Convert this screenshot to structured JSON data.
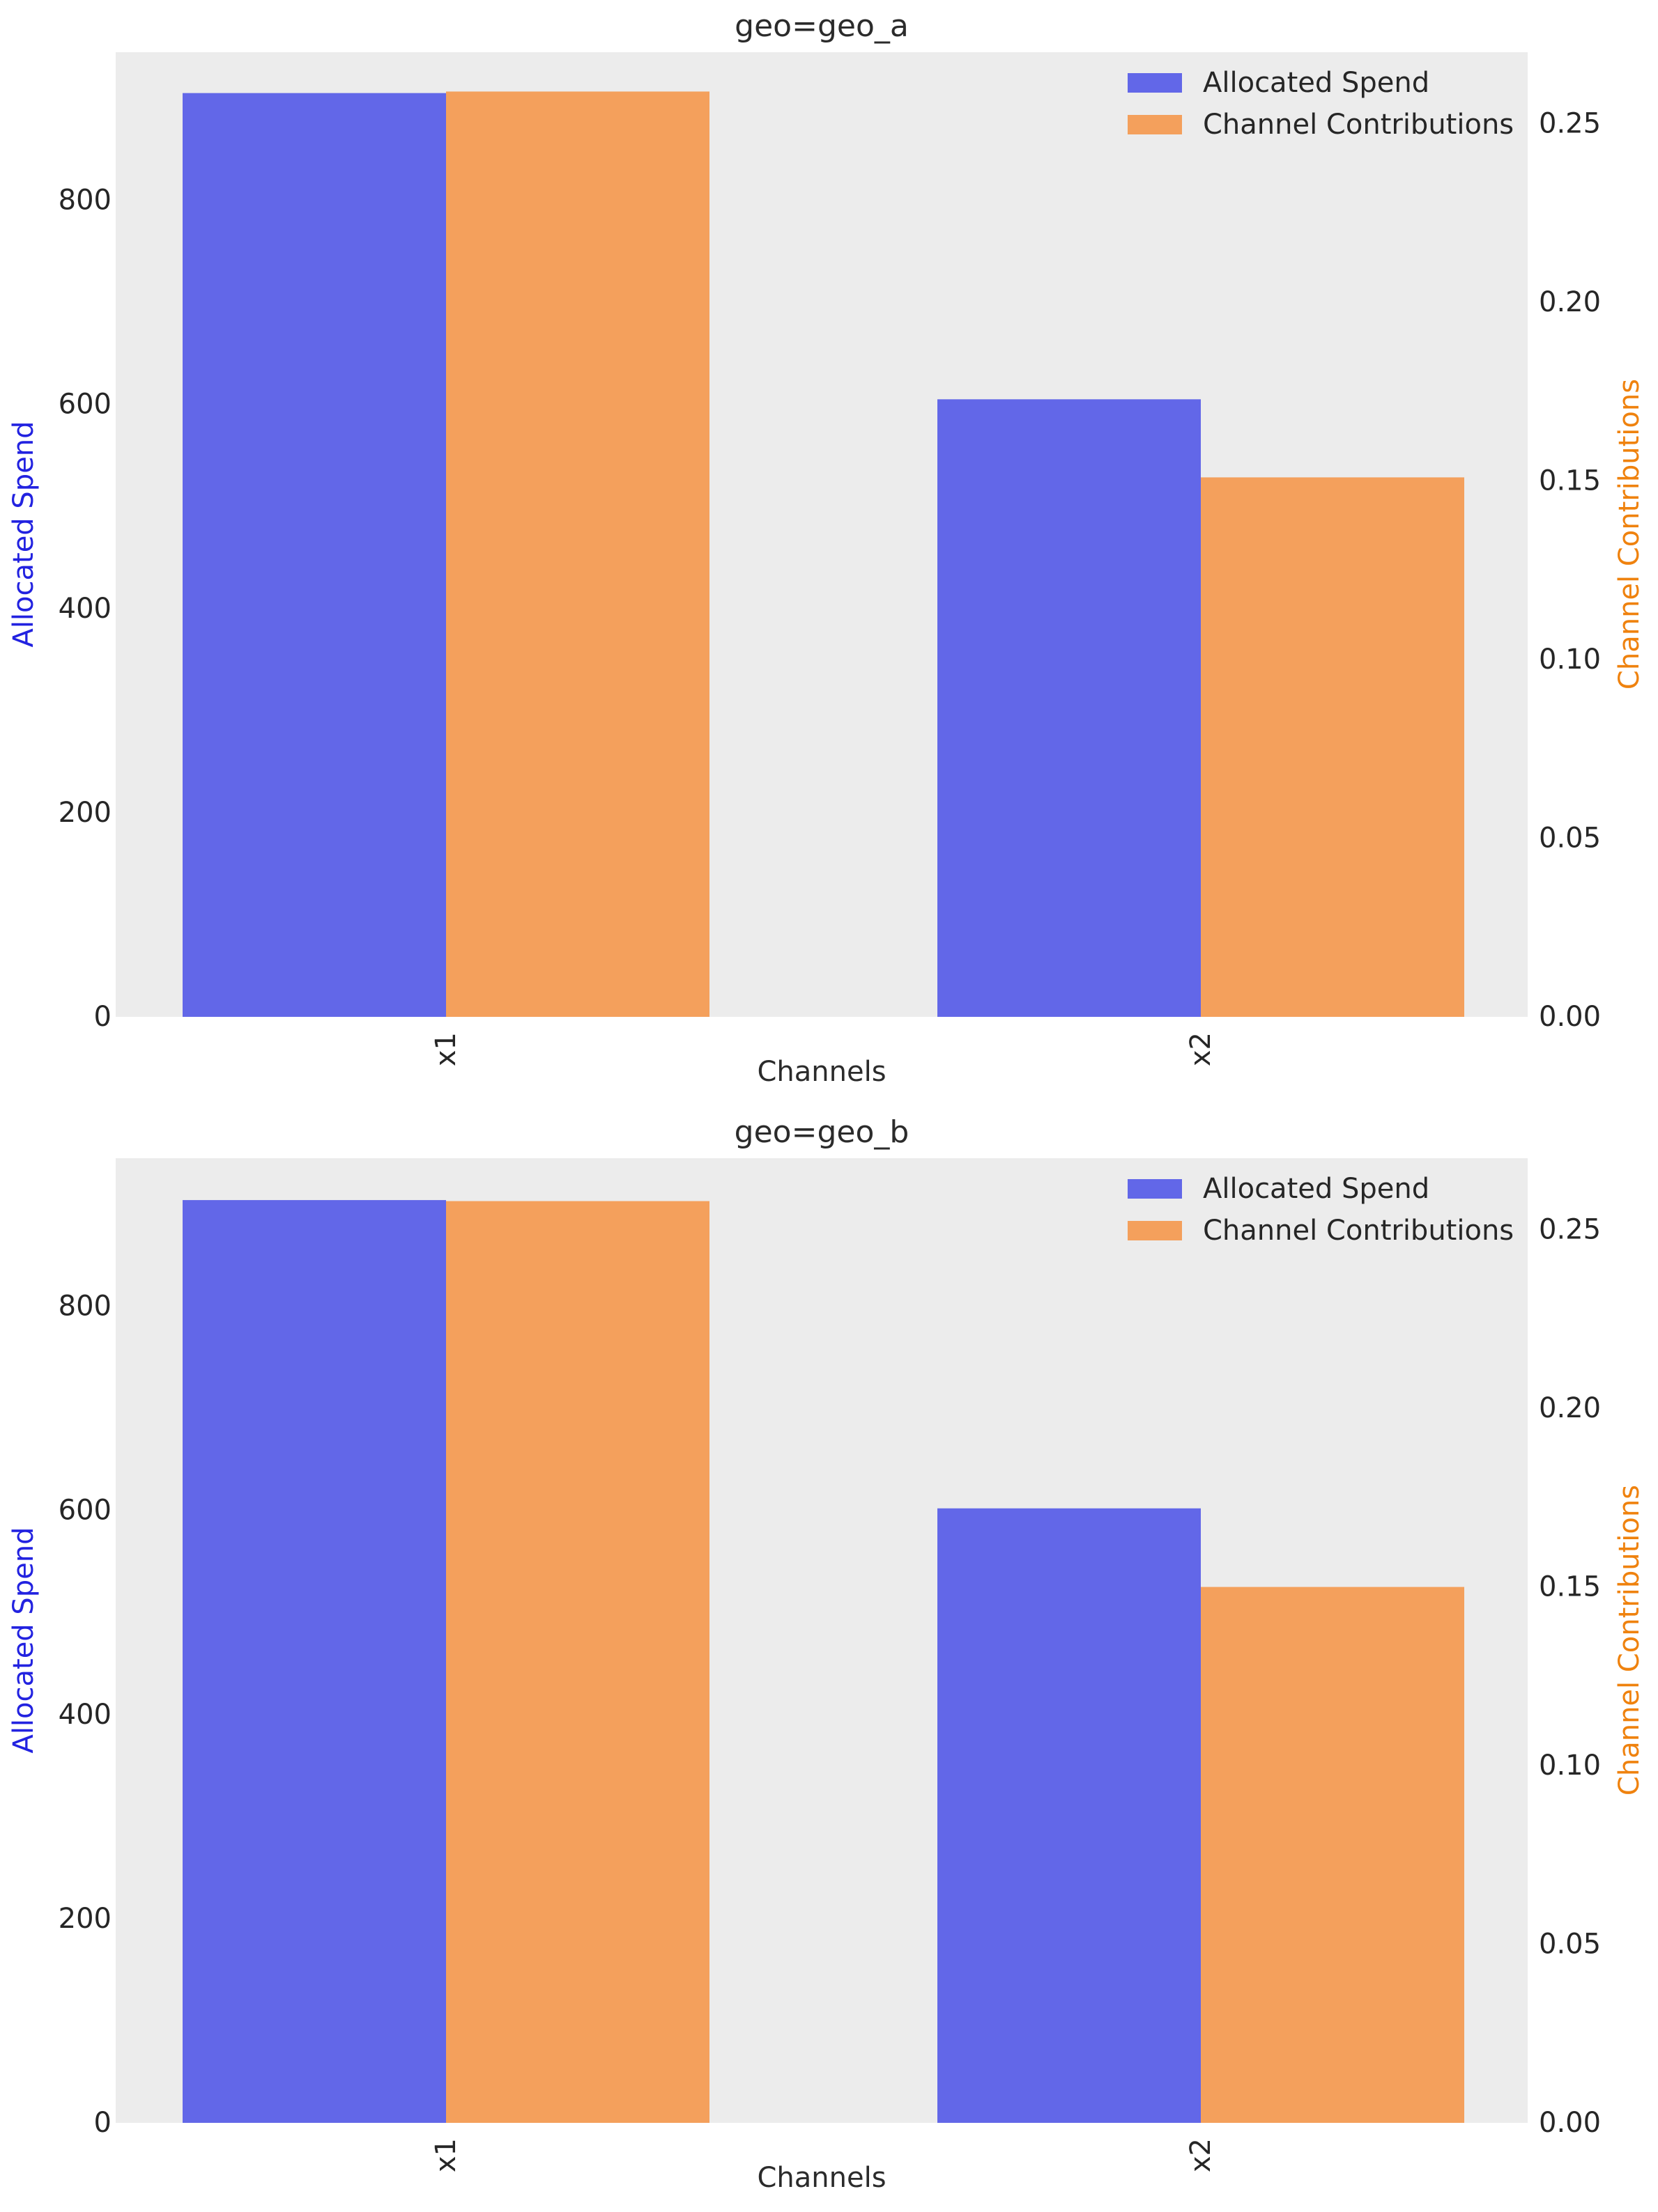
{
  "page": {
    "background": "#ffffff",
    "plot_background": "#ececec",
    "text_color": "#262626",
    "title_color": "#2b2b2b"
  },
  "chart_data": [
    {
      "type": "bar",
      "title": "geo=geo_a",
      "xlabel": "Channels",
      "categories": [
        "x1",
        "x2"
      ],
      "series": [
        {
          "name": "Allocated Spend",
          "axis": "left",
          "color": "#6267e8",
          "values": [
            905,
            605
          ]
        },
        {
          "name": "Channel Contributions",
          "axis": "right",
          "color": "#f4a05c",
          "values": [
            0.259,
            0.151
          ]
        }
      ],
      "left_axis": {
        "label": "Allocated Spend",
        "color": "#2222e0",
        "ticks": [
          0,
          200,
          400,
          600,
          800
        ],
        "range": [
          0,
          945
        ]
      },
      "right_axis": {
        "label": "Channel Contributions",
        "color": "#ef820e",
        "ticks": [
          "0.00",
          "0.05",
          "0.10",
          "0.15",
          "0.20",
          "0.25"
        ],
        "range": [
          0,
          0.27
        ]
      },
      "legend": {
        "position": "upper right",
        "entries": [
          "Allocated Spend",
          "Channel Contributions"
        ]
      },
      "grid": false
    },
    {
      "type": "bar",
      "title": "geo=geo_b",
      "xlabel": "Channels",
      "categories": [
        "x1",
        "x2"
      ],
      "series": [
        {
          "name": "Allocated Spend",
          "axis": "left",
          "color": "#6267e8",
          "values": [
            904,
            602
          ]
        },
        {
          "name": "Channel Contributions",
          "axis": "right",
          "color": "#f4a05c",
          "values": [
            0.258,
            0.15
          ]
        }
      ],
      "left_axis": {
        "label": "Allocated Spend",
        "color": "#2222e0",
        "ticks": [
          0,
          200,
          400,
          600,
          800
        ],
        "range": [
          0,
          945
        ]
      },
      "right_axis": {
        "label": "Channel Contributions",
        "color": "#ef820e",
        "ticks": [
          "0.00",
          "0.05",
          "0.10",
          "0.15",
          "0.20",
          "0.25"
        ],
        "range": [
          0,
          0.27
        ]
      },
      "legend": {
        "position": "upper right",
        "entries": [
          "Allocated Spend",
          "Channel Contributions"
        ]
      },
      "grid": false
    }
  ]
}
